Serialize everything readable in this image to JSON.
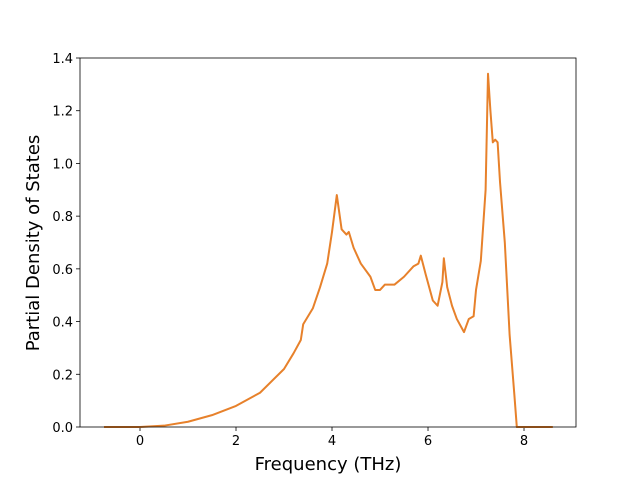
{
  "chart_data": {
    "type": "line",
    "xlabel": "Frequency (THz)",
    "ylabel": "Partial Density of States",
    "x": [
      -0.75,
      0,
      0.5,
      1.0,
      1.5,
      2.0,
      2.5,
      3.0,
      3.2,
      3.35,
      3.4,
      3.6,
      3.75,
      3.9,
      4.0,
      4.1,
      4.2,
      4.3,
      4.35,
      4.45,
      4.6,
      4.8,
      4.9,
      5.0,
      5.1,
      5.3,
      5.5,
      5.7,
      5.8,
      5.85,
      5.95,
      6.1,
      6.2,
      6.3,
      6.33,
      6.4,
      6.5,
      6.6,
      6.75,
      6.85,
      6.95,
      7.0,
      7.1,
      7.2,
      7.25,
      7.3,
      7.35,
      7.4,
      7.45,
      7.5,
      7.6,
      7.7,
      7.8,
      7.85,
      8.6
    ],
    "values": [
      0,
      0,
      0.005,
      0.02,
      0.045,
      0.08,
      0.13,
      0.22,
      0.28,
      0.33,
      0.39,
      0.45,
      0.53,
      0.62,
      0.74,
      0.88,
      0.75,
      0.73,
      0.74,
      0.68,
      0.62,
      0.57,
      0.52,
      0.52,
      0.54,
      0.54,
      0.57,
      0.61,
      0.62,
      0.65,
      0.58,
      0.48,
      0.46,
      0.55,
      0.64,
      0.53,
      0.46,
      0.41,
      0.36,
      0.41,
      0.42,
      0.52,
      0.63,
      0.9,
      1.34,
      1.2,
      1.08,
      1.09,
      1.08,
      0.93,
      0.7,
      0.35,
      0.12,
      0,
      0
    ],
    "color": "#e7812b",
    "xlim": [
      -1.25,
      9.083
    ],
    "ylim": [
      0,
      1.4
    ],
    "xticks": [
      0,
      2,
      4,
      6,
      8
    ],
    "yticks": [
      {
        "value": 0,
        "label": "0.0"
      },
      0.2,
      0.4,
      0.6,
      0.8,
      {
        "value": 1,
        "label": "1.0"
      },
      1.2,
      1.4
    ]
  }
}
